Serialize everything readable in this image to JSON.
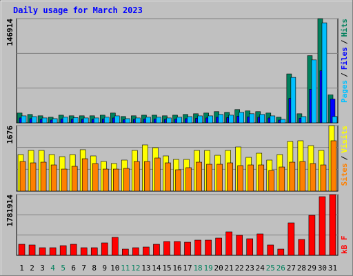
{
  "title": "Daily usage for March 2023",
  "chart_data": [
    {
      "type": "bar",
      "separator": "/",
      "ylim": [
        0,
        146914
      ],
      "yticks": [
        146914
      ],
      "series": [
        {
          "name": "Hits",
          "color": "#00805c",
          "values": [
            13800,
            11800,
            9900,
            7900,
            10800,
            9900,
            9900,
            9900,
            10800,
            13800,
            8900,
            9900,
            10800,
            10800,
            9900,
            10800,
            11800,
            12800,
            13800,
            15800,
            14800,
            18700,
            16800,
            15800,
            13800,
            7900,
            69000,
            12800,
            94700,
            146914,
            39400
          ]
        },
        {
          "name": "Files",
          "color": "#0000ff",
          "values": [
            6900,
            5900,
            4900,
            3900,
            5400,
            4900,
            4900,
            4900,
            5400,
            6900,
            4400,
            4900,
            5400,
            5400,
            4900,
            5400,
            5900,
            6400,
            6900,
            7900,
            7400,
            9300,
            8400,
            7900,
            6900,
            3900,
            34500,
            6400,
            47300,
            73400,
            33500
          ]
        },
        {
          "name": "Pages",
          "color": "#00c0ff",
          "values": [
            9800,
            8800,
            6900,
            5900,
            7900,
            7400,
            6900,
            6900,
            7900,
            9800,
            5900,
            6900,
            7900,
            7900,
            6900,
            7900,
            8800,
            9800,
            9800,
            11800,
            10800,
            14800,
            12800,
            11800,
            9800,
            4900,
            64100,
            8800,
            88700,
            141000,
            8900
          ]
        }
      ]
    },
    {
      "type": "bar",
      "separator": "/",
      "ylim": [
        0,
        1676
      ],
      "yticks": [
        1676
      ],
      "series": [
        {
          "name": "Visits",
          "color": "#ffff00",
          "values": [
            935,
            1041,
            1041,
            935,
            882,
            935,
            1059,
            900,
            759,
            706,
            794,
            1041,
            1182,
            1111,
            900,
            811,
            811,
            1041,
            1041,
            917,
            1041,
            1129,
            864,
            970,
            794,
            935,
            1270,
            1288,
            1164,
            1041,
            1676
          ]
        },
        {
          "name": "Sites",
          "color": "#ff8000",
          "values": [
            758,
            723,
            741,
            670,
            564,
            635,
            829,
            706,
            564,
            564,
            582,
            758,
            758,
            847,
            723,
            547,
            600,
            741,
            688,
            688,
            723,
            653,
            670,
            670,
            529,
            617,
            741,
            758,
            706,
            670,
            1288
          ]
        }
      ]
    },
    {
      "type": "bar",
      "ylim": [
        0,
        1781914
      ],
      "yticks": [
        1781914
      ],
      "categories": [
        "1",
        "2",
        "3",
        "4",
        "5",
        "6",
        "7",
        "8",
        "9",
        "10",
        "11",
        "12",
        "13",
        "14",
        "15",
        "16",
        "17",
        "18",
        "19",
        "20",
        "21",
        "22",
        "23",
        "24",
        "25",
        "26",
        "27",
        "28",
        "29",
        "30",
        "31"
      ],
      "category_colors": [
        "#000000",
        "#000000",
        "#000000",
        "#00805c",
        "#00805c",
        "#000000",
        "#000000",
        "#000000",
        "#000000",
        "#000000",
        "#00805c",
        "#00805c",
        "#000000",
        "#000000",
        "#000000",
        "#000000",
        "#000000",
        "#00805c",
        "#00805c",
        "#000000",
        "#000000",
        "#000000",
        "#000000",
        "#000000",
        "#00805c",
        "#00805c",
        "#000000",
        "#000000",
        "#000000",
        "#000000",
        "#000000"
      ],
      "series": [
        {
          "name": "kB F",
          "color": "#ff0000",
          "values": [
            324000,
            303700,
            222700,
            222700,
            283500,
            324000,
            222700,
            222700,
            364500,
            526500,
            182200,
            222700,
            243000,
            324000,
            405000,
            405000,
            384700,
            445500,
            445500,
            506200,
            688500,
            587200,
            486000,
            627700,
            303700,
            182200,
            951700,
            465700,
            1174400,
            1721200,
            1781914
          ]
        }
      ]
    }
  ]
}
